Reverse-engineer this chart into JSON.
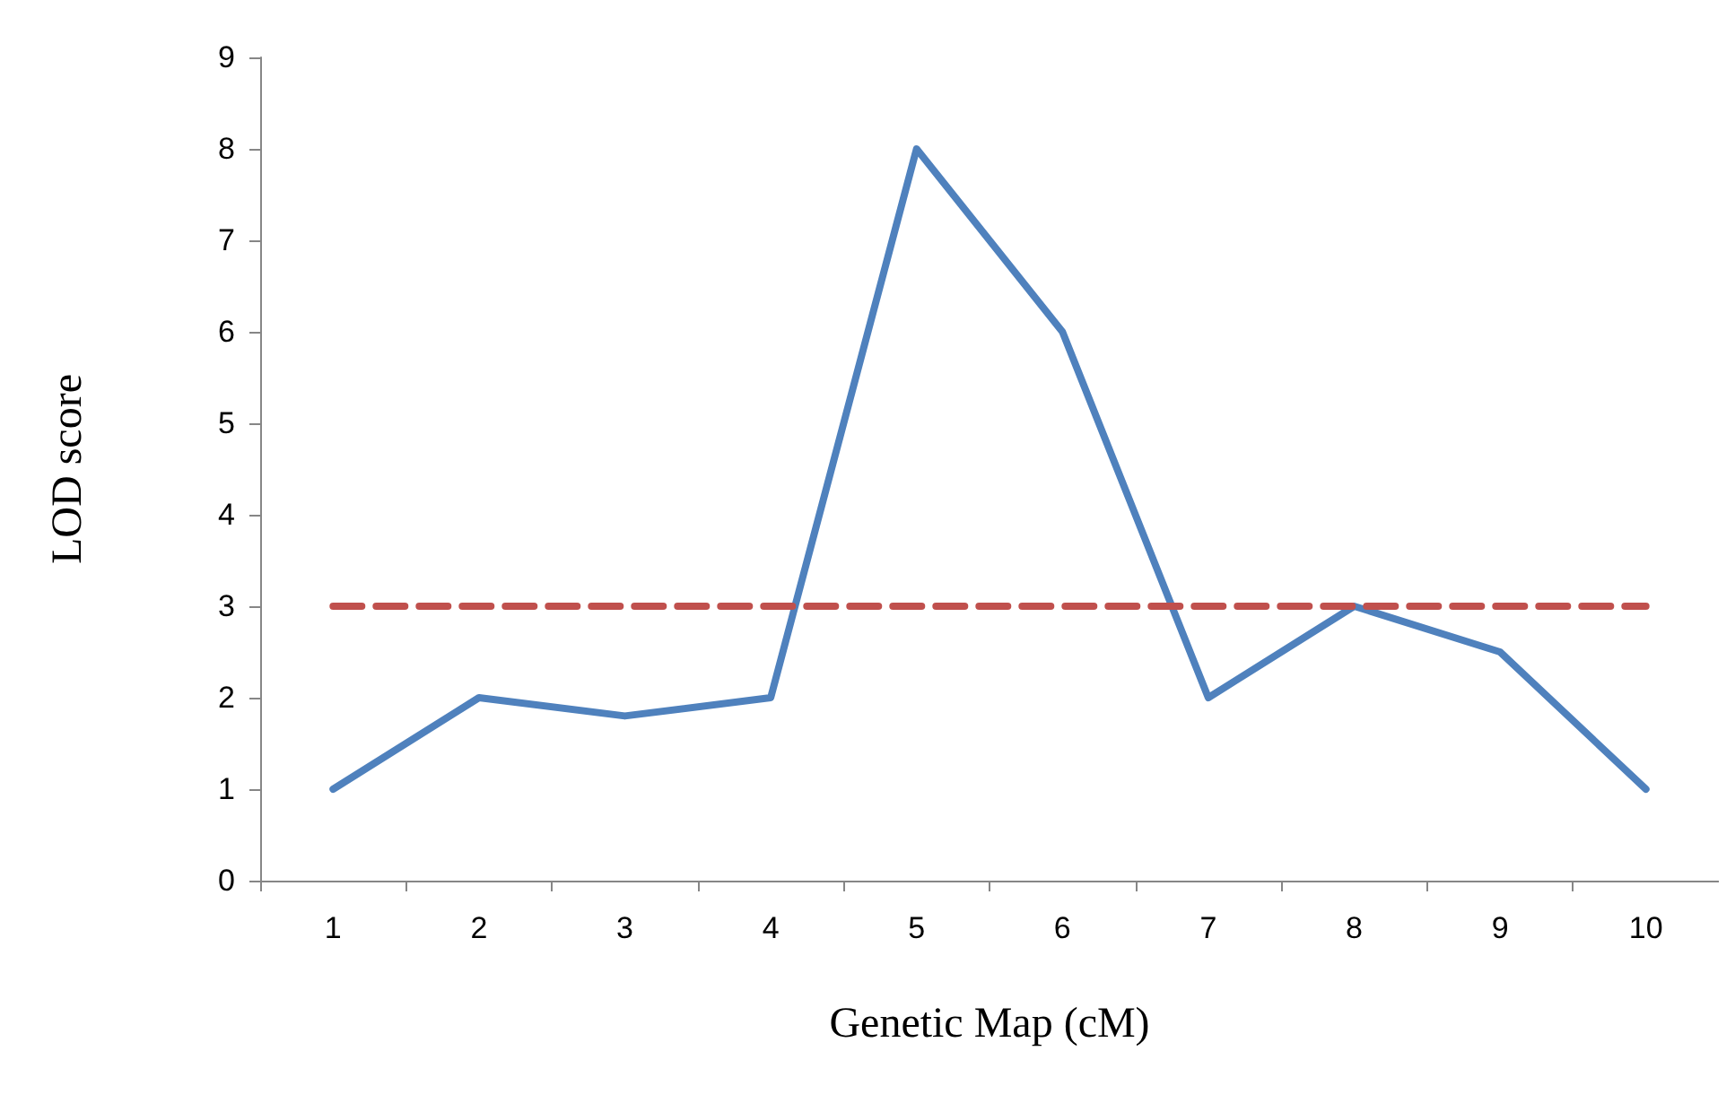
{
  "chart_data": {
    "type": "line",
    "xlabel": "Genetic Map (cM)",
    "ylabel": "LOD score",
    "categories": [
      "1",
      "2",
      "3",
      "4",
      "5",
      "6",
      "7",
      "8",
      "9",
      "10"
    ],
    "series": [
      {
        "color": "#4f81bd",
        "values": [
          1,
          2,
          1.8,
          2,
          8,
          6,
          2,
          3,
          2.5,
          1
        ]
      },
      {
        "color": "#c0504d",
        "line_style": "dashed",
        "values": [
          3,
          3,
          3,
          3,
          3,
          3,
          3,
          3,
          3,
          3
        ]
      }
    ],
    "ylim": [
      0,
      9
    ],
    "yticks": [
      0,
      1,
      2,
      3,
      4,
      5,
      6,
      7,
      8,
      9
    ],
    "grid": false,
    "marker": "none",
    "line_style": "solid"
  }
}
